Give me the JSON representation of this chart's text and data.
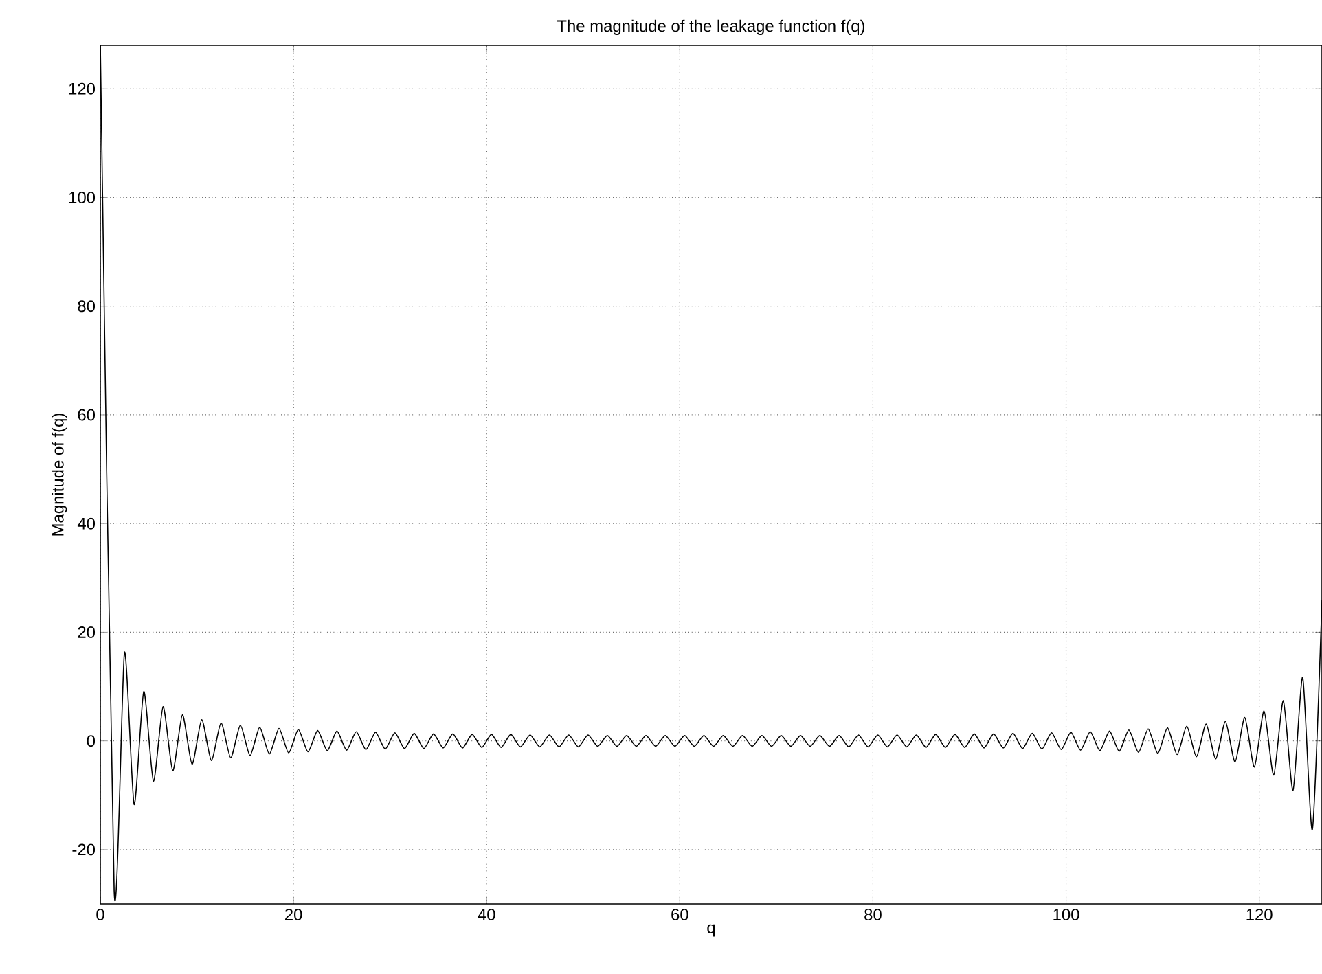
{
  "chart_data": {
    "type": "line",
    "title": "The magnitude of the leakage function f(q)",
    "xlabel": "q",
    "ylabel": "Magnitude of f(q)",
    "x": [
      0,
      1.43,
      2.5,
      3.5,
      4.5,
      5.5,
      6.5,
      7.5,
      8.5,
      9.5,
      10.5,
      11.5,
      12.5,
      13.5,
      14.5,
      15.5,
      16.5,
      17.5,
      18.5,
      19.5,
      20.5,
      21.5,
      22.5,
      23.5,
      24.5,
      25.5,
      26.5,
      27.5,
      28.5,
      29.5,
      30.5,
      31.5,
      32.5,
      33.5,
      34.5,
      35.5,
      36.5,
      37.5,
      38.5,
      39.5,
      40.5,
      41.5,
      42.5,
      43.5,
      44.5,
      45.5,
      46.5,
      47.5,
      48.5,
      49.5,
      50.5,
      51.5,
      52.5,
      53.5,
      54.5,
      55.5,
      56.5,
      57.5,
      58.5,
      59.5,
      60.5,
      61.5,
      62.5,
      63.5,
      64.5,
      65.5,
      66.5,
      67.5,
      68.5,
      69.5,
      70.5,
      71.5,
      72.5,
      73.5,
      74.5,
      75.5,
      76.5,
      77.5,
      78.5,
      79.5,
      80.5,
      81.5,
      82.5,
      83.5,
      84.5,
      85.5,
      86.5,
      87.5,
      88.5,
      89.5,
      90.5,
      91.5,
      92.5,
      93.5,
      94.5,
      95.5,
      96.5,
      97.5,
      98.5,
      99.5,
      100.5,
      101.5,
      102.5,
      103.5,
      104.5,
      105.5,
      106.5,
      107.5,
      108.5,
      109.5,
      110.5,
      111.5,
      112.5,
      113.5,
      114.5,
      115.5,
      116.5,
      117.5,
      118.5,
      119.5,
      120.5,
      121.5,
      122.5,
      123.5,
      124.5,
      125.5,
      126.5
    ],
    "values": [
      128,
      -27.6,
      16.3,
      -11.7,
      9.1,
      -7.4,
      6.3,
      -5.5,
      4.8,
      -4.3,
      3.9,
      -3.6,
      3.3,
      -3.1,
      2.9,
      -2.7,
      2.5,
      -2.4,
      2.3,
      -2.2,
      2.1,
      -2.0,
      1.9,
      -1.8,
      1.8,
      -1.7,
      1.7,
      -1.6,
      1.6,
      -1.5,
      1.5,
      -1.4,
      1.4,
      -1.4,
      1.3,
      -1.3,
      1.3,
      -1.3,
      1.2,
      -1.2,
      1.2,
      -1.2,
      1.2,
      -1.1,
      1.1,
      -1.1,
      1.1,
      -1.1,
      1.1,
      -1.1,
      1.1,
      -1.0,
      1.0,
      -1.0,
      1.0,
      -1.0,
      1.0,
      -1.0,
      1.0,
      -1.0,
      1.0,
      -1.0,
      1.0,
      -1.0,
      1.0,
      -1.0,
      1.0,
      -1.0,
      1.0,
      -1.0,
      1.0,
      -1.0,
      1.0,
      -1.0,
      1.0,
      -1.0,
      1.0,
      -1.1,
      1.1,
      -1.1,
      1.1,
      -1.1,
      1.1,
      -1.1,
      1.1,
      -1.2,
      1.2,
      -1.2,
      1.2,
      -1.2,
      1.3,
      -1.3,
      1.3,
      -1.3,
      1.4,
      -1.4,
      1.4,
      -1.5,
      1.5,
      -1.6,
      1.6,
      -1.7,
      1.7,
      -1.8,
      1.8,
      -1.9,
      2.0,
      -2.1,
      2.2,
      -2.3,
      2.4,
      -2.5,
      2.7,
      -2.9,
      3.1,
      -3.3,
      3.6,
      -3.9,
      4.3,
      -4.8,
      5.5,
      -6.3,
      7.4,
      -9.1,
      11.7,
      -16.3,
      26
    ],
    "color": "#000000",
    "line_style": "solid",
    "xlim": [
      0,
      126.5
    ],
    "ylim": [
      -30,
      128
    ],
    "xticks": [
      0,
      20,
      40,
      60,
      80,
      100,
      120
    ],
    "yticks": [
      -20,
      0,
      20,
      40,
      60,
      80,
      100,
      120
    ],
    "grid": true
  }
}
